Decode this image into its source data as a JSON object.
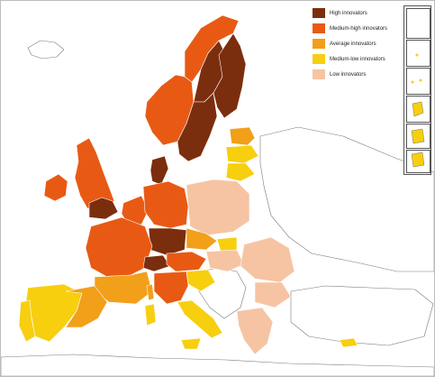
{
  "legend": {
    "items": [
      {
        "label": "High innovators",
        "color": "#7b2e0e"
      },
      {
        "label": "Medium-high innovators",
        "color": "#e85a13"
      },
      {
        "label": "Average innovators",
        "color": "#f29f1a"
      },
      {
        "label": "Medium-low innovators",
        "color": "#f7cf0f"
      },
      {
        "label": "Low innovators",
        "color": "#f6c4a3"
      }
    ]
  },
  "colors": {
    "sea": "#ffffff",
    "non_region_fill": "#ffffff",
    "border": "#7a7a7a",
    "region_border": "#ffffff"
  },
  "regions": [
    {
      "name": "norway-north",
      "category": 1
    },
    {
      "name": "norway-south",
      "category": 1
    },
    {
      "name": "sweden-north",
      "category": 0
    },
    {
      "name": "sweden-south",
      "category": 0
    },
    {
      "name": "finland",
      "category": 0
    },
    {
      "name": "estonia",
      "category": 2
    },
    {
      "name": "latvia",
      "category": 3
    },
    {
      "name": "lithuania",
      "category": 3
    },
    {
      "name": "denmark",
      "category": 0
    },
    {
      "name": "ireland",
      "category": 1
    },
    {
      "name": "great-britain",
      "category": 1
    },
    {
      "name": "south-east-england",
      "category": 0
    },
    {
      "name": "benelux",
      "category": 1
    },
    {
      "name": "germany",
      "category": 1
    },
    {
      "name": "south-germany",
      "category": 0
    },
    {
      "name": "poland",
      "category": 4
    },
    {
      "name": "czechia",
      "category": 2
    },
    {
      "name": "slovakia",
      "category": 3
    },
    {
      "name": "hungary",
      "category": 4
    },
    {
      "name": "romania",
      "category": 4
    },
    {
      "name": "bulgaria",
      "category": 4
    },
    {
      "name": "greece",
      "category": 4
    },
    {
      "name": "france",
      "category": 1
    },
    {
      "name": "south-france",
      "category": 2
    },
    {
      "name": "switzerland",
      "category": 0
    },
    {
      "name": "austria",
      "category": 1
    },
    {
      "name": "slovenia-croatia",
      "category": 3
    },
    {
      "name": "italy-north",
      "category": 1
    },
    {
      "name": "italy-south",
      "category": 3
    },
    {
      "name": "iberia-west",
      "category": 3
    },
    {
      "name": "iberia-east",
      "category": 2
    },
    {
      "name": "portugal",
      "category": 3
    },
    {
      "name": "sicily",
      "category": 3
    },
    {
      "name": "sardinia",
      "category": 3
    },
    {
      "name": "corsica",
      "category": 2
    },
    {
      "name": "cyprus",
      "category": 3
    }
  ]
}
